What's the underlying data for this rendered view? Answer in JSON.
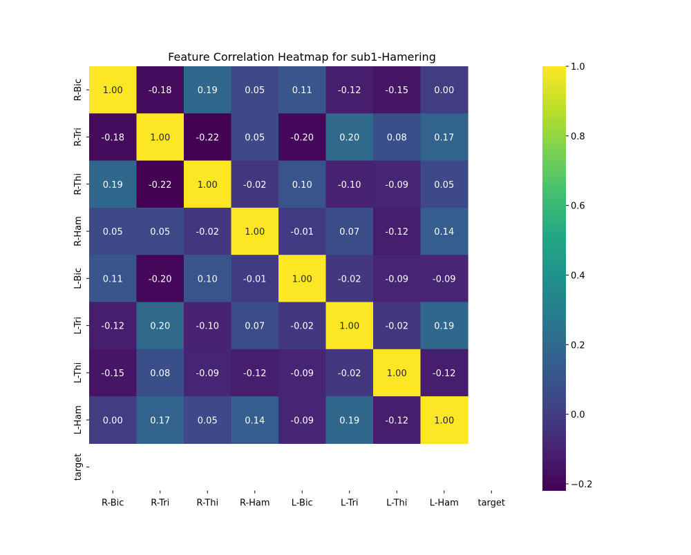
{
  "chart_data": {
    "type": "heatmap",
    "title": "Feature Correlation Heatmap for sub1-Hamering",
    "xlabel": "",
    "ylabel": "",
    "x_labels": [
      "R-Bic",
      "R-Tri",
      "R-Thi",
      "R-Ham",
      "L-Bic",
      "L-Tri",
      "L-Thi",
      "L-Ham",
      "target"
    ],
    "y_labels": [
      "R-Bic",
      "R-Tri",
      "R-Thi",
      "R-Ham",
      "L-Bic",
      "L-Tri",
      "L-Thi",
      "L-Ham",
      "target"
    ],
    "values": [
      [
        1.0,
        -0.18,
        0.19,
        0.05,
        0.11,
        -0.12,
        -0.15,
        -0.0,
        null
      ],
      [
        -0.18,
        1.0,
        -0.22,
        0.05,
        -0.2,
        0.2,
        0.08,
        0.17,
        null
      ],
      [
        0.19,
        -0.22,
        1.0,
        -0.02,
        0.1,
        -0.1,
        -0.09,
        0.05,
        null
      ],
      [
        0.05,
        0.05,
        -0.02,
        1.0,
        -0.01,
        0.07,
        -0.12,
        0.14,
        null
      ],
      [
        0.11,
        -0.2,
        0.1,
        -0.01,
        1.0,
        -0.02,
        -0.09,
        -0.09,
        null
      ],
      [
        -0.12,
        0.2,
        -0.1,
        0.07,
        -0.02,
        1.0,
        -0.02,
        0.19,
        null
      ],
      [
        -0.15,
        0.08,
        -0.09,
        -0.12,
        -0.09,
        -0.02,
        1.0,
        -0.12,
        null
      ],
      [
        -0.0,
        0.17,
        0.05,
        0.14,
        -0.09,
        0.19,
        -0.12,
        1.0,
        null
      ],
      [
        null,
        null,
        null,
        null,
        null,
        null,
        null,
        null,
        null
      ]
    ],
    "annotation_format": "0.00",
    "colormap": "viridis",
    "vmin": -0.22,
    "vmax": 1.0,
    "colorbar": {
      "ticks": [
        1.0,
        0.8,
        0.6,
        0.4,
        0.2,
        0.0,
        -0.2
      ],
      "tick_labels": [
        "1.0",
        "0.8",
        "0.6",
        "0.4",
        "0.2",
        "0.0",
        "−0.2"
      ]
    },
    "grid": false,
    "legend": "colorbar-right"
  }
}
